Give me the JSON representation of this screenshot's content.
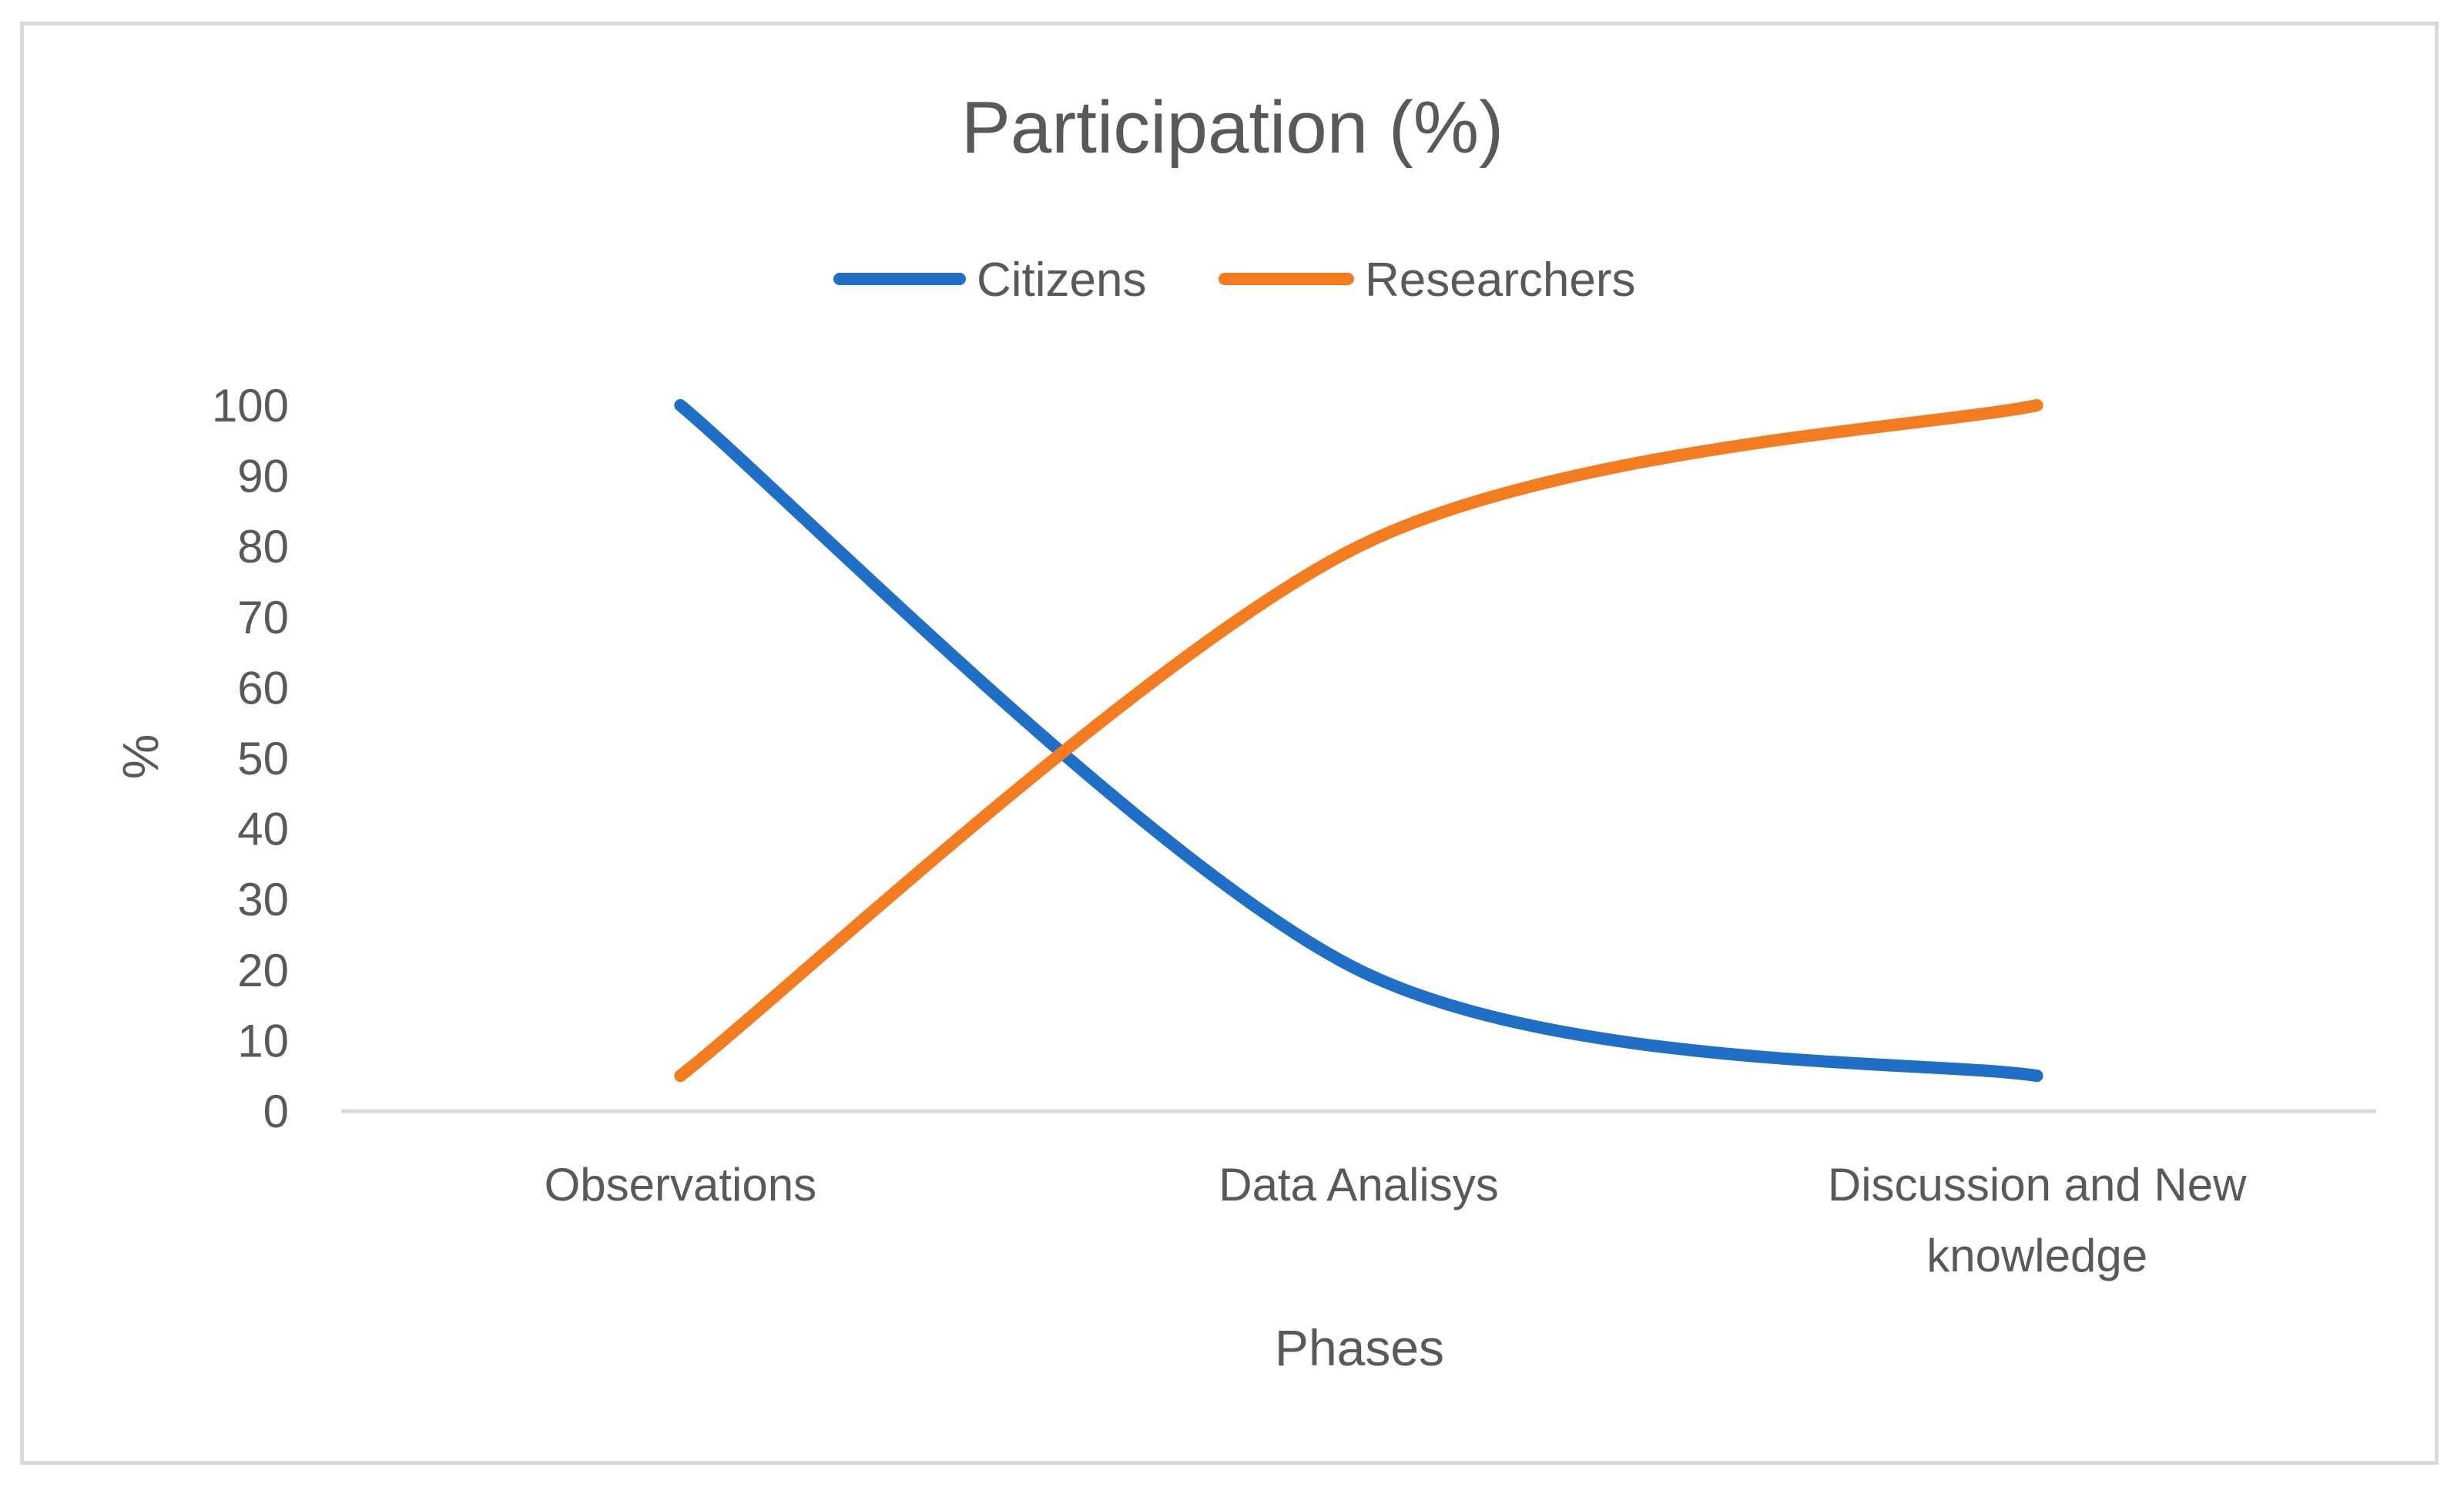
{
  "chart_data": {
    "type": "line",
    "title": "Participation (%)",
    "xlabel": "Phases",
    "ylabel": "%",
    "categories": [
      "Observations",
      "Data Analisys",
      "Discussion and New knowledge"
    ],
    "category_label_lines": [
      [
        "Observations"
      ],
      [
        "Data Analisys"
      ],
      [
        "Discussion and New",
        "knowledge"
      ]
    ],
    "series": [
      {
        "name": "Citizens",
        "values": [
          100,
          20,
          5
        ],
        "color": "#1f6fc6"
      },
      {
        "name": "Researchers",
        "values": [
          5,
          80,
          100
        ],
        "color": "#f47c20"
      }
    ],
    "ylim": [
      0,
      100
    ],
    "yticks": [
      0,
      10,
      20,
      30,
      40,
      50,
      60,
      70,
      80,
      90,
      100
    ],
    "grid": false,
    "smooth": true,
    "legend_position": "top"
  }
}
